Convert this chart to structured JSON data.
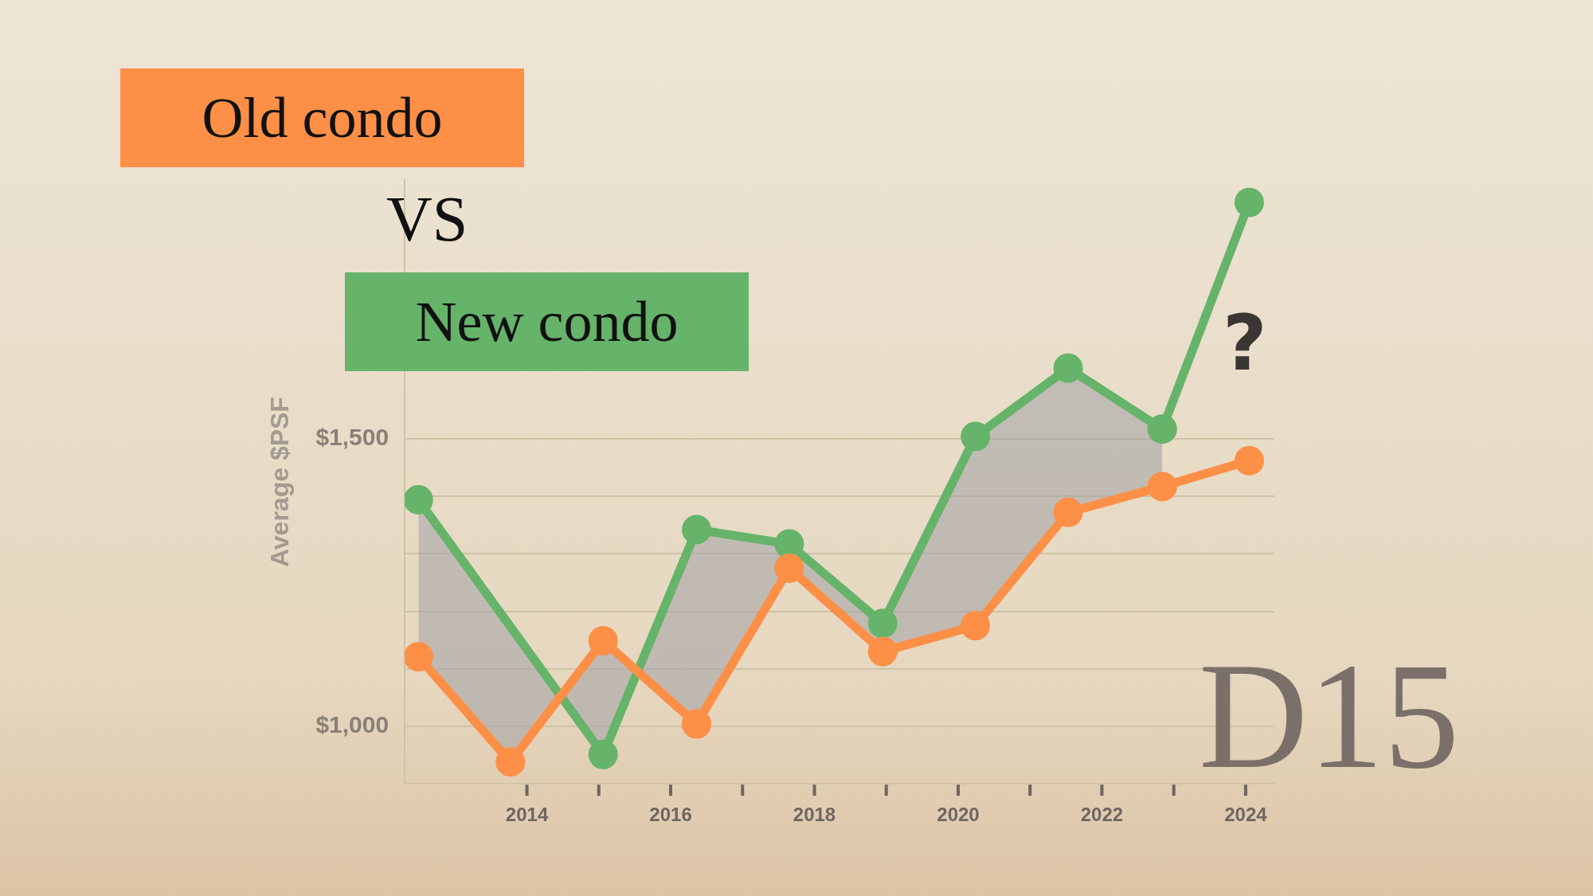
{
  "chart_data": {
    "type": "line",
    "ylabel": "Average $PSF",
    "x": [
      2012.49,
      2013.77,
      2015.06,
      2016.36,
      2017.65,
      2018.95,
      2020.24,
      2021.53,
      2022.84,
      2024.05
    ],
    "series": [
      {
        "name": "Old condo",
        "color": "#fd8f47",
        "values": [
          1121,
          938,
          1149,
          1004,
          1275,
          1130,
          1175,
          1372,
          1417,
          1462
        ],
        "lower": [
          1121,
          938,
          1149,
          1004,
          1275,
          1130,
          1175,
          1372,
          1417,
          null
        ],
        "upper": [
          1394,
          1173,
          951,
          1342,
          1317,
          1179,
          1504,
          1623,
          1517,
          null
        ]
      },
      {
        "name": "New condo",
        "color": "#66b36a",
        "x": [
          2012.49,
          2015.06,
          2016.36,
          2017.65,
          2018.95,
          2020.24,
          2021.53,
          2022.84,
          2024.05
        ],
        "values": [
          1394,
          951,
          1342,
          1317,
          1179,
          1504,
          1623,
          1517,
          1911
        ]
      }
    ],
    "xlim": [
      2012.3,
      2024.4
    ],
    "xticks": [
      2014,
      {
        "value": 2015,
        "label": null
      },
      2016,
      {
        "value": 2017,
        "label": null
      },
      2018,
      {
        "value": 2019,
        "label": null
      },
      2020,
      {
        "value": 2021,
        "label": null
      },
      2022,
      {
        "value": 2023,
        "label": null
      },
      2024
    ],
    "ylim": [
      900,
      1950
    ],
    "yticks": [
      {
        "value": 900,
        "label": null
      },
      {
        "value": 1000,
        "label": "$1,000"
      },
      {
        "value": 1100,
        "label": null
      },
      {
        "value": 1200,
        "label": null
      },
      {
        "value": 1300,
        "label": null
      },
      {
        "value": 1400,
        "label": null
      },
      {
        "value": 1500,
        "label": "$1,500"
      }
    ],
    "grid": "y",
    "legend": "top left",
    "marker": "circle",
    "line_style": "solid",
    "annotations": [
      "VS",
      "?",
      "D15"
    ]
  }
}
